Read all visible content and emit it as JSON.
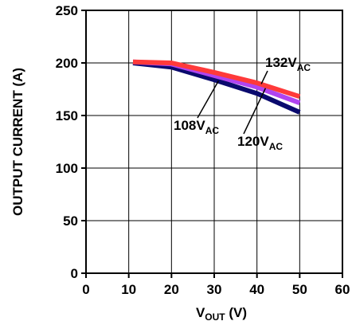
{
  "chart_data": {
    "type": "line",
    "title": "",
    "xlabel": {
      "main": "V",
      "sub": "OUT",
      "suffix": " (V)"
    },
    "ylabel": "OUTPUT CURRENT (A)",
    "xlim": [
      0,
      60
    ],
    "ylim": [
      0,
      250
    ],
    "x_ticks": [
      0,
      10,
      20,
      30,
      40,
      50,
      60
    ],
    "y_ticks": [
      0,
      50,
      100,
      150,
      200,
      250
    ],
    "grid": true,
    "series": [
      {
        "name": "108VAC",
        "label_main": "108V",
        "label_sub": "AC",
        "color": "#0a0a6e",
        "x": [
          11,
          20,
          30,
          40,
          50
        ],
        "y": [
          200,
          196,
          184,
          171,
          153
        ]
      },
      {
        "name": "120VAC",
        "label_main": "120V",
        "label_sub": "AC",
        "color": "#b044f0",
        "x": [
          11,
          20,
          30,
          40,
          50
        ],
        "y": [
          201,
          199,
          188,
          177,
          162
        ]
      },
      {
        "name": "132VAC",
        "label_main": "132V",
        "label_sub": "AC",
        "color": "#ff3a3a",
        "x": [
          11,
          20,
          30,
          40,
          50
        ],
        "y": [
          201,
          200,
          191,
          181,
          168
        ]
      }
    ]
  }
}
